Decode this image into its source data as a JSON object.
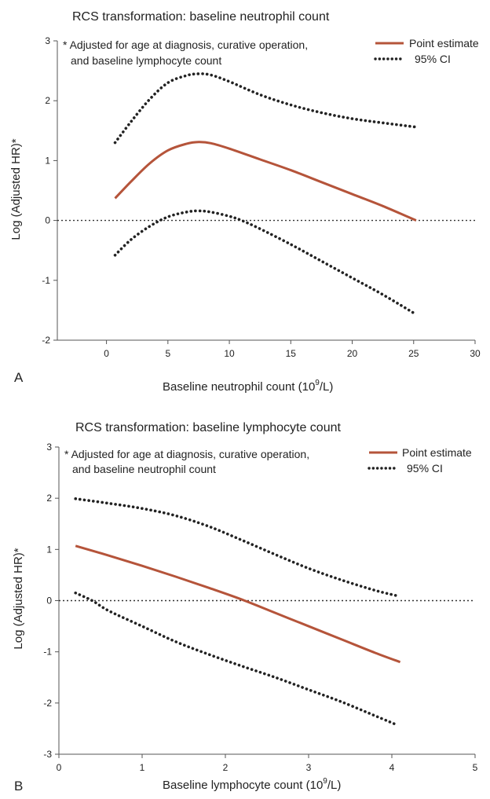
{
  "colors": {
    "point_estimate": "#b5543a",
    "ci": "#222222",
    "reference": "#333333"
  },
  "chart_data": [
    {
      "type": "line",
      "panel_label": "A",
      "title": "RCS transformation: baseline neutrophil count",
      "xlabel_main": "Baseline neutrophil count (10",
      "xlabel_sup": "9",
      "xlabel_tail": "/L)",
      "ylabel": "Log (Adjusted HR)*",
      "note_lines": [
        "* Adjusted for age at diagnosis, curative operation,",
        "and baseline lymphocyte count"
      ],
      "xlim": [
        -4,
        30
      ],
      "ylim": [
        -2,
        3
      ],
      "xticks": [
        0,
        5,
        10,
        15,
        20,
        25,
        30
      ],
      "yticks": [
        -2,
        -1,
        0,
        1,
        2,
        3
      ],
      "reference_line_y": 0,
      "legend": {
        "position": "top-right",
        "entries": [
          "Point estimate",
          "95% CI"
        ]
      },
      "series": [
        {
          "name": "Point estimate",
          "style": "solid",
          "x": [
            0.7,
            2,
            3.5,
            5,
            6.5,
            7.5,
            8.5,
            10,
            12.5,
            15,
            17.5,
            20,
            22.5,
            25.2
          ],
          "y": [
            0.37,
            0.65,
            0.95,
            1.17,
            1.28,
            1.31,
            1.29,
            1.2,
            1.02,
            0.84,
            0.64,
            0.44,
            0.24,
            0.0
          ]
        },
        {
          "name": "95% CI",
          "style": "dotted",
          "x": [
            0.7,
            2,
            3.5,
            5,
            6.5,
            7.5,
            8.5,
            10,
            12.5,
            15,
            17.5,
            20,
            22.5,
            25.2
          ],
          "y": [
            1.3,
            1.65,
            2.02,
            2.3,
            2.42,
            2.45,
            2.43,
            2.32,
            2.1,
            1.93,
            1.8,
            1.7,
            1.63,
            1.56
          ]
        },
        {
          "name": "95% CI",
          "style": "dotted",
          "x": [
            0.7,
            2,
            3.5,
            5,
            6.5,
            7.5,
            8.5,
            10,
            11,
            12.5,
            15,
            17.5,
            20,
            22.5,
            25.2
          ],
          "y": [
            -0.58,
            -0.32,
            -0.1,
            0.06,
            0.14,
            0.16,
            0.14,
            0.07,
            0.0,
            -0.14,
            -0.4,
            -0.68,
            -0.96,
            -1.24,
            -1.57
          ]
        }
      ]
    },
    {
      "type": "line",
      "panel_label": "B",
      "title": "RCS transformation: baseline lymphocyte count",
      "xlabel_main": "Baseline lymphocyte count (10",
      "xlabel_sup": "9",
      "xlabel_tail": "/L)",
      "ylabel": "Log (Adjusted HR)*",
      "note_lines": [
        "* Adjusted for age at diagnosis, curative operation,",
        "and baseline neutrophil count"
      ],
      "xlim": [
        0,
        5
      ],
      "ylim": [
        -3,
        3
      ],
      "xticks": [
        0,
        1,
        2,
        3,
        4,
        5
      ],
      "yticks": [
        -3,
        -2,
        -1,
        0,
        1,
        2,
        3
      ],
      "reference_line_y": 0,
      "legend": {
        "position": "top-right",
        "entries": [
          "Point estimate",
          "95% CI"
        ]
      },
      "series": [
        {
          "name": "Point estimate",
          "style": "solid",
          "x": [
            0.2,
            0.6,
            1.0,
            1.4,
            1.8,
            2.2,
            2.6,
            3.0,
            3.4,
            3.8,
            4.1
          ],
          "y": [
            1.07,
            0.88,
            0.68,
            0.47,
            0.25,
            0.02,
            -0.24,
            -0.5,
            -0.76,
            -1.02,
            -1.2
          ]
        },
        {
          "name": "95% CI",
          "style": "dotted",
          "x": [
            0.2,
            0.6,
            1.0,
            1.4,
            1.8,
            2.2,
            2.6,
            3.0,
            3.4,
            3.8,
            4.05
          ],
          "y": [
            1.99,
            1.9,
            1.8,
            1.66,
            1.45,
            1.18,
            0.9,
            0.63,
            0.4,
            0.2,
            0.1
          ]
        },
        {
          "name": "95% CI",
          "style": "dotted",
          "x": [
            0.2,
            0.4,
            0.6,
            1.0,
            1.4,
            1.8,
            2.2,
            2.6,
            3.0,
            3.4,
            3.8,
            4.05
          ],
          "y": [
            0.15,
            0.0,
            -0.2,
            -0.5,
            -0.8,
            -1.05,
            -1.28,
            -1.5,
            -1.74,
            -1.98,
            -2.25,
            -2.42
          ]
        }
      ]
    }
  ]
}
